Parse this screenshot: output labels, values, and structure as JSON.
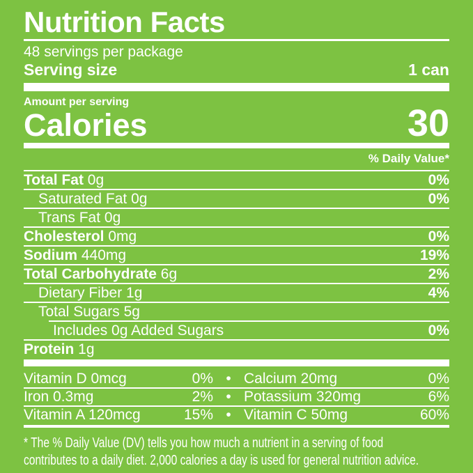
{
  "colors": {
    "background": "#7DC242",
    "text": "#FFFFFF"
  },
  "header": {
    "title": "Nutrition Facts",
    "servings_per_package": "48 servings per package",
    "serving_size_label": "Serving size",
    "serving_size_value": "1 can"
  },
  "calories": {
    "amount_per_serving_label": "Amount per serving",
    "calories_label": "Calories",
    "calories_value": "30"
  },
  "daily_value_header": "% Daily Value*",
  "nutrients": [
    {
      "name": "Total Fat",
      "amount": "0g",
      "bold": true,
      "indent": 0,
      "dv": "0%",
      "sep_indent": false
    },
    {
      "name": "Saturated Fat",
      "amount": "0g",
      "bold": false,
      "indent": 1,
      "dv": "0%",
      "sep_indent": false
    },
    {
      "name": "Trans Fat",
      "amount": "0g",
      "bold": false,
      "indent": 1,
      "dv": "",
      "sep_indent": false
    },
    {
      "name": "Cholesterol",
      "amount": "0mg",
      "bold": true,
      "indent": 0,
      "dv": "0%",
      "sep_indent": false
    },
    {
      "name": "Sodium",
      "amount": "440mg",
      "bold": true,
      "indent": 0,
      "dv": "19%",
      "sep_indent": false
    },
    {
      "name": "Total Carbohydrate",
      "amount": "6g",
      "bold": true,
      "indent": 0,
      "dv": "2%",
      "sep_indent": false
    },
    {
      "name": "Dietary Fiber",
      "amount": "1g",
      "bold": false,
      "indent": 1,
      "dv": "4%",
      "sep_indent": false
    },
    {
      "name": "Total Sugars",
      "amount": "5g",
      "bold": false,
      "indent": 1,
      "dv": "",
      "sep_indent": false
    },
    {
      "name": "Includes 0g Added Sugars",
      "amount": "",
      "bold": false,
      "indent": 2,
      "dv": "0%",
      "sep_indent": true
    },
    {
      "name": "Protein",
      "amount": "1g",
      "bold": true,
      "indent": 0,
      "dv": "",
      "sep_indent": false
    }
  ],
  "micronutrients": {
    "bullet": "•",
    "rows": [
      {
        "left_name": "Vitamin D 0mcg",
        "left_dv": "0%",
        "right_name": "Calcium 20mg",
        "right_dv": "0%"
      },
      {
        "left_name": "Iron 0.3mg",
        "left_dv": "2%",
        "right_name": "Potassium 320mg",
        "right_dv": "6%"
      },
      {
        "left_name": "Vitamin A 120mcg",
        "left_dv": "15%",
        "right_name": "Vitamin C 50mg",
        "right_dv": "60%"
      }
    ]
  },
  "footnote_lines": [
    "* The % Daily Value (DV) tells you how much a nutrient in a serving of food",
    "contributes to a daily diet. 2,000 calories a day is used for general nutrition advice."
  ]
}
